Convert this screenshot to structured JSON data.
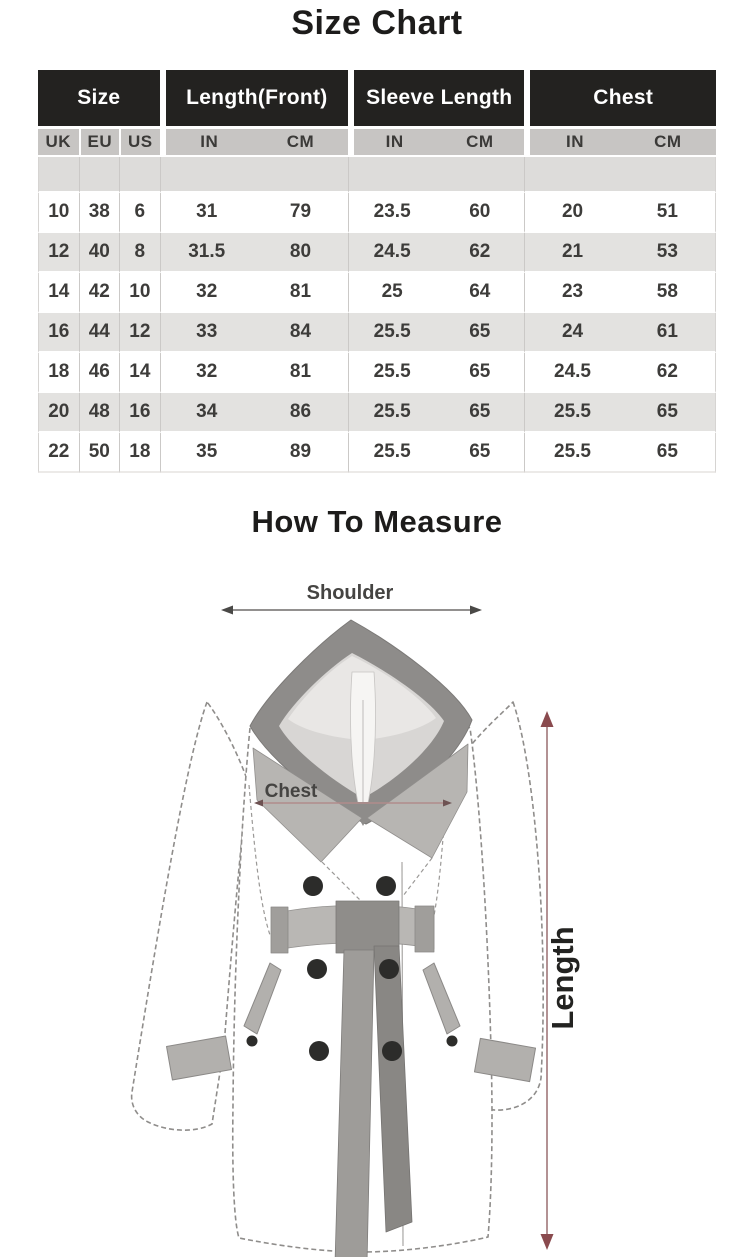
{
  "titles": {
    "size_chart": "Size Chart",
    "how_to_measure": "How To Measure"
  },
  "size_table": {
    "column_groups": [
      {
        "label": "Size",
        "subcolumns": [
          "UK",
          "EU",
          "US"
        ]
      },
      {
        "label": "Length(Front)",
        "subcolumns": [
          "IN",
          "CM"
        ]
      },
      {
        "label": "Sleeve Length",
        "subcolumns": [
          "IN",
          "CM"
        ]
      },
      {
        "label": "Chest",
        "subcolumns": [
          "IN",
          "CM"
        ]
      }
    ],
    "rows": [
      [
        "10",
        "38",
        "6",
        "31",
        "79",
        "23.5",
        "60",
        "20",
        "51"
      ],
      [
        "12",
        "40",
        "8",
        "31.5",
        "80",
        "24.5",
        "62",
        "21",
        "53"
      ],
      [
        "14",
        "42",
        "10",
        "32",
        "81",
        "25",
        "64",
        "23",
        "58"
      ],
      [
        "16",
        "44",
        "12",
        "33",
        "84",
        "25.5",
        "65",
        "24",
        "61"
      ],
      [
        "18",
        "46",
        "14",
        "32",
        "81",
        "25.5",
        "65",
        "24.5",
        "62"
      ],
      [
        "20",
        "48",
        "16",
        "34",
        "86",
        "25.5",
        "65",
        "25.5",
        "65"
      ],
      [
        "22",
        "50",
        "18",
        "35",
        "89",
        "25.5",
        "65",
        "25.5",
        "65"
      ]
    ]
  },
  "diagram": {
    "shoulder_label": "Shoulder",
    "chest_label": "Chest",
    "length_label": "Length"
  },
  "colors": {
    "header_bg": "#232220",
    "header_text": "#ffffff",
    "subheader_bg": "#c7c5c3",
    "spacer_bg": "#dddcda",
    "row_alt_bg": "#e3e2e0",
    "measure_arrow": "#9a6e70",
    "chest_line": "#b18b8b",
    "shoulder_line": "#6e6c6a",
    "coat_trim_gray": "#b7b5b2",
    "hood_dark_gray": "#8e8c8a",
    "button_dark": "#2c2c2a"
  }
}
